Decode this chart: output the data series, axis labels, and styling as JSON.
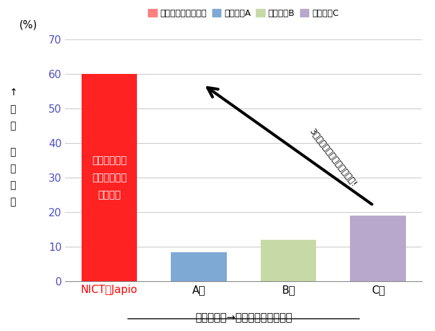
{
  "categories": [
    "NICTとJapio",
    "A社",
    "B社",
    "C社"
  ],
  "values": [
    60,
    8.5,
    12,
    19
  ],
  "bar_colors": [
    "#FF2222",
    "#7DA9D4",
    "#C8D9A8",
    "#B8A8CC"
  ],
  "legend_labels": [
    "今回開発した新技術",
    "従来技術A",
    "従来技術B",
    "従来技術C"
  ],
  "legend_colors": [
    "#FF8080",
    "#7DA9D4",
    "#C8D9A8",
    "#B8A8CC"
  ],
  "ylabel_top": "(%)",
  "ylabel_vertical_1": "↑高い",
  "ylabel_vertical_2": "翻訳精度",
  "xlabel": "特許文　中→日　翻訳精度の比較",
  "ylim": [
    0,
    70
  ],
  "yticks": [
    0,
    10,
    20,
    30,
    40,
    50,
    60,
    70
  ],
  "bar_annotation_line1": "今回開発した",
  "bar_annotation_line2": "新技術による",
  "bar_annotation_line3": "翻訳精度",
  "arrow_annotation": "3倍以上　翻訳精度がアップ!",
  "x_labels_color": [
    "#FF0000",
    "#000000",
    "#000000",
    "#000000"
  ],
  "ytick_color": "#5050C0",
  "background_color": "#FFFFFF"
}
